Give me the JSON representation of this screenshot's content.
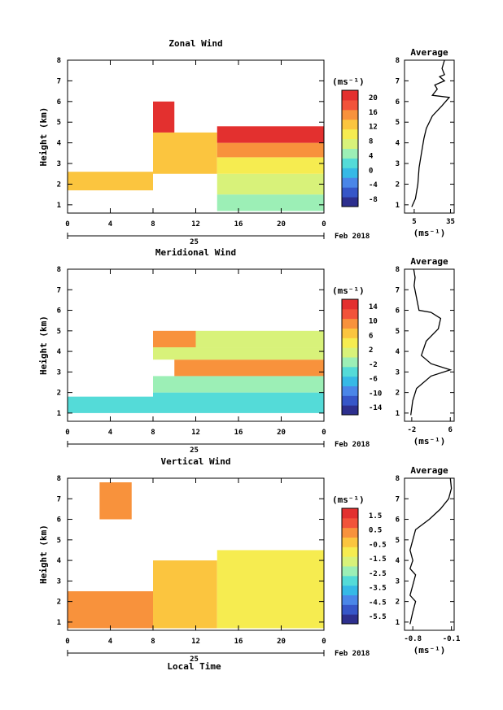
{
  "figure": {
    "x_axis_label": "Local Time",
    "date_label": "Feb 2018",
    "date_day": "25"
  },
  "chart_data": [
    {
      "type": "heatmap",
      "title": "Zonal Wind",
      "ylabel": "Height (km)",
      "xlabel": "Local Time",
      "x_ticks": [
        "0",
        "4",
        "8",
        "12",
        "16",
        "20",
        "0"
      ],
      "y_ticks": [
        "1",
        "2",
        "3",
        "4",
        "5",
        "6",
        "7",
        "8"
      ],
      "xlim": [
        0,
        24
      ],
      "ylim": [
        0.6,
        8
      ],
      "colorbar": {
        "unit": "(ms⁻¹)",
        "ticks": [
          "20",
          "16",
          "12",
          "8",
          "4",
          "0",
          "-4",
          "-8"
        ],
        "range": [
          -10,
          22
        ]
      },
      "bands": [
        {
          "t0": 0,
          "t1": 8,
          "h0": 1.7,
          "h1": 2.6,
          "value": 12
        },
        {
          "t0": 8,
          "t1": 14,
          "h0": 2.5,
          "h1": 4.5,
          "value": 12
        },
        {
          "t0": 8,
          "t1": 10,
          "h0": 4.5,
          "h1": 6.0,
          "value": 20
        },
        {
          "t0": 14,
          "t1": 24,
          "h0": 0.7,
          "h1": 1.5,
          "value": 5
        },
        {
          "t0": 14,
          "t1": 24,
          "h0": 1.5,
          "h1": 2.5,
          "value": 8
        },
        {
          "t0": 14,
          "t1": 24,
          "h0": 2.5,
          "h1": 3.3,
          "value": 11
        },
        {
          "t0": 14,
          "t1": 24,
          "h0": 3.3,
          "h1": 4.0,
          "value": 16
        },
        {
          "t0": 14,
          "t1": 24,
          "h0": 4.0,
          "h1": 4.8,
          "value": 20
        }
      ],
      "average": {
        "title": "Average",
        "x_ticks": [
          "5",
          "35"
        ],
        "xlim": [
          -3,
          38
        ],
        "unit": "(ms⁻¹)",
        "profile": [
          [
            3,
            0.9
          ],
          [
            6,
            1.3
          ],
          [
            8,
            2.0
          ],
          [
            9,
            2.8
          ],
          [
            11,
            3.5
          ],
          [
            13,
            4.2
          ],
          [
            15,
            4.7
          ],
          [
            20,
            5.3
          ],
          [
            28,
            5.8
          ],
          [
            34,
            6.2
          ],
          [
            20,
            6.3
          ],
          [
            24,
            6.6
          ],
          [
            22,
            6.8
          ],
          [
            30,
            7.0
          ],
          [
            26,
            7.2
          ],
          [
            30,
            7.3
          ],
          [
            28,
            7.6
          ],
          [
            30,
            8.0
          ]
        ]
      }
    },
    {
      "type": "heatmap",
      "title": "Meridional Wind",
      "ylabel": "Height (km)",
      "xlabel": "Local Time",
      "x_ticks": [
        "0",
        "4",
        "8",
        "12",
        "16",
        "20",
        "0"
      ],
      "y_ticks": [
        "1",
        "2",
        "3",
        "4",
        "5",
        "6",
        "7",
        "8"
      ],
      "xlim": [
        0,
        24
      ],
      "ylim": [
        0.6,
        8
      ],
      "colorbar": {
        "unit": "(ms⁻¹)",
        "ticks": [
          "14",
          "10",
          "6",
          "2",
          "-2",
          "-6",
          "-10",
          "-14"
        ],
        "range": [
          -16,
          16
        ]
      },
      "bands": [
        {
          "t0": 0,
          "t1": 8,
          "h0": 1.0,
          "h1": 1.8,
          "value": -4
        },
        {
          "t0": 8,
          "t1": 24,
          "h0": 1.0,
          "h1": 2.0,
          "value": -5
        },
        {
          "t0": 8,
          "t1": 24,
          "h0": 2.0,
          "h1": 2.8,
          "value": -2
        },
        {
          "t0": 10,
          "t1": 24,
          "h0": 2.8,
          "h1": 3.6,
          "value": 8
        },
        {
          "t0": 8,
          "t1": 24,
          "h0": 3.6,
          "h1": 4.2,
          "value": 2
        },
        {
          "t0": 8,
          "t1": 12,
          "h0": 4.2,
          "h1": 5.0,
          "value": 10
        },
        {
          "t0": 12,
          "t1": 24,
          "h0": 4.2,
          "h1": 5.0,
          "value": 0
        }
      ],
      "average": {
        "title": "Average",
        "x_ticks": [
          "-2",
          "6"
        ],
        "xlim": [
          -3.5,
          6.8
        ],
        "unit": "(ms⁻¹)",
        "profile": [
          [
            -2.2,
            0.9
          ],
          [
            -1.8,
            1.6
          ],
          [
            -1,
            2.2
          ],
          [
            2,
            2.8
          ],
          [
            6,
            3.1
          ],
          [
            2,
            3.4
          ],
          [
            0,
            3.8
          ],
          [
            1,
            4.5
          ],
          [
            3.5,
            5.1
          ],
          [
            4,
            5.6
          ],
          [
            2,
            5.9
          ],
          [
            -0.5,
            6.0
          ],
          [
            -1,
            6.6
          ],
          [
            -1.5,
            7.2
          ],
          [
            -1.3,
            7.6
          ],
          [
            -1.6,
            8.0
          ]
        ]
      }
    },
    {
      "type": "heatmap",
      "title": "Vertical Wind",
      "ylabel": "Height (km)",
      "xlabel": "Local Time",
      "x_ticks": [
        "0",
        "4",
        "8",
        "12",
        "16",
        "20",
        "0"
      ],
      "y_ticks": [
        "1",
        "2",
        "3",
        "4",
        "5",
        "6",
        "7",
        "8"
      ],
      "xlim": [
        0,
        24
      ],
      "ylim": [
        0.6,
        8
      ],
      "colorbar": {
        "unit": "(ms⁻¹)",
        "ticks": [
          "1.5",
          "0.5",
          "-0.5",
          "-1.5",
          "-2.5",
          "-3.5",
          "-4.5",
          "-5.5"
        ],
        "range": [
          -6,
          2
        ]
      },
      "bands": [
        {
          "t0": 0,
          "t1": 8,
          "h0": 0.7,
          "h1": 2.5,
          "value": 0.3
        },
        {
          "t0": 3,
          "t1": 6,
          "h0": 6.0,
          "h1": 7.8,
          "value": 0.2
        },
        {
          "t0": 8,
          "t1": 14,
          "h0": 0.7,
          "h1": 4.0,
          "value": -0.6
        },
        {
          "t0": 14,
          "t1": 24,
          "h0": 0.7,
          "h1": 4.5,
          "value": -1.2
        }
      ],
      "average": {
        "title": "Average",
        "x_ticks": [
          "-0.8",
          "-0.1"
        ],
        "xlim": [
          -0.95,
          -0.05
        ],
        "unit": "(ms⁻¹)",
        "profile": [
          [
            -0.85,
            0.9
          ],
          [
            -0.8,
            1.5
          ],
          [
            -0.75,
            2.0
          ],
          [
            -0.85,
            2.3
          ],
          [
            -0.8,
            2.8
          ],
          [
            -0.75,
            3.3
          ],
          [
            -0.85,
            3.6
          ],
          [
            -0.8,
            4.0
          ],
          [
            -0.85,
            4.5
          ],
          [
            -0.75,
            5.5
          ],
          [
            -0.5,
            6.0
          ],
          [
            -0.3,
            6.5
          ],
          [
            -0.15,
            7.0
          ],
          [
            -0.1,
            7.5
          ],
          [
            -0.12,
            8.0
          ]
        ]
      }
    }
  ]
}
